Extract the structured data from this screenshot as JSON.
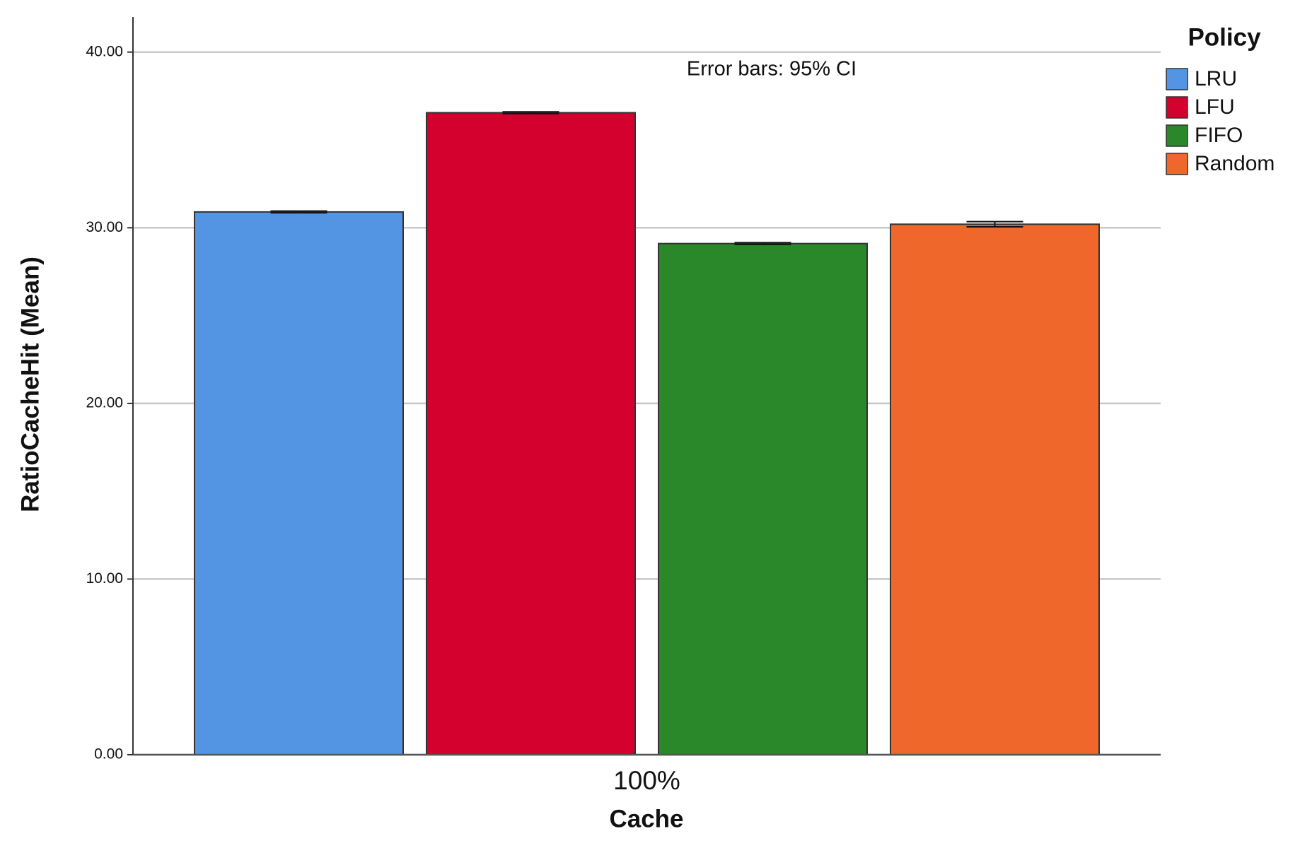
{
  "chart_data": {
    "type": "bar",
    "subtitle": "Error bars: 95% CI",
    "x_label": "Cache",
    "y_label": "RatioCacheHit (Mean)",
    "categories": [
      "100%"
    ],
    "legend_title": "Policy",
    "legend": "upper right",
    "grid": true,
    "series": [
      {
        "name": "LRU",
        "color": "#5495e3",
        "values": [
          30.9
        ],
        "errors": [
          0.05
        ]
      },
      {
        "name": "LFU",
        "color": "#d4002e",
        "values": [
          36.55
        ],
        "errors": [
          0.05
        ]
      },
      {
        "name": "FIFO",
        "color": "#2a882a",
        "values": [
          29.1
        ],
        "errors": [
          0.05
        ]
      },
      {
        "name": "Random",
        "color": "#f0672c",
        "values": [
          30.2
        ],
        "errors": [
          0.15
        ]
      }
    ],
    "ylim": [
      0,
      42
    ],
    "yticks": [
      {
        "value": 0,
        "label": "0.00"
      },
      {
        "value": 10,
        "label": "10.00"
      },
      {
        "value": 20,
        "label": "20.00"
      },
      {
        "value": 30,
        "label": "30.00"
      },
      {
        "value": 40,
        "label": "40.00"
      }
    ]
  }
}
